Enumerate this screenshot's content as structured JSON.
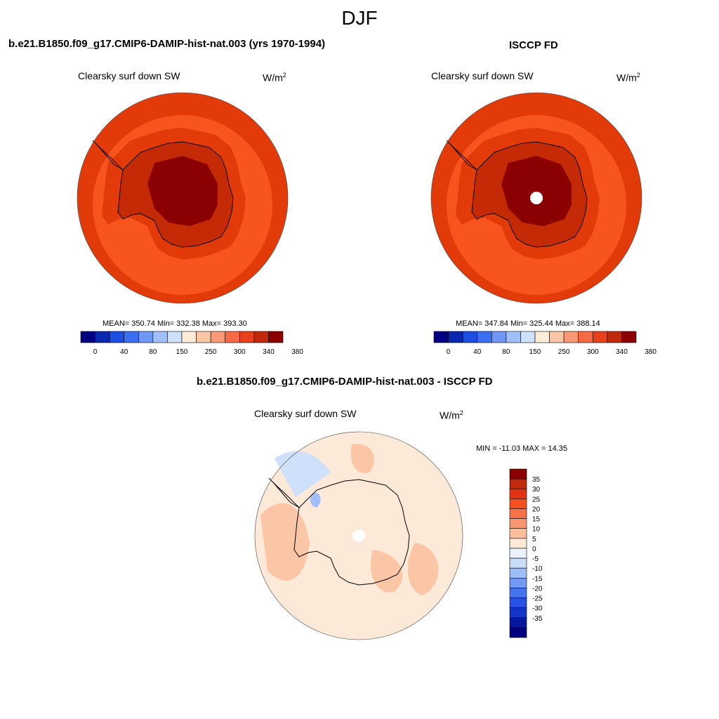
{
  "season": "DJF",
  "panels": [
    {
      "title": "b.e21.B1850.f09_g17.CMIP6-DAMIP-hist-nat.003 (yrs 1970-1994)",
      "left_label": "Clearsky surf down SW",
      "units_main": "W/m",
      "units_sup": "2",
      "stats": "MEAN= 350.74  Min= 332.38  Max= 393.30",
      "pole_hole": false
    },
    {
      "title": "ISCCP FD",
      "left_label": "Clearsky surf down SW",
      "units_main": "W/m",
      "units_sup": "2",
      "stats": "MEAN= 347.84  Min= 325.44  Max= 388.14",
      "pole_hole": true
    }
  ],
  "abs_colorbar": {
    "colors": [
      "#000080",
      "#0a27b0",
      "#1a4fe0",
      "#3a6ff0",
      "#6f97f5",
      "#9fbff8",
      "#cfe0fb",
      "#fdebd8",
      "#fbc6a6",
      "#f89a76",
      "#f56a45",
      "#e8401a",
      "#c02a0a",
      "#8b0000"
    ],
    "labels": [
      "0",
      "40",
      "80",
      "150",
      "250",
      "300",
      "340",
      "380"
    ]
  },
  "diff": {
    "title": "b.e21.B1850.f09_g17.CMIP6-DAMIP-hist-nat.003 - ISCCP FD",
    "left_label": "Clearsky surf down SW",
    "units_main": "W/m",
    "units_sup": "2",
    "stats": "MIN = -11.03 MAX =  14.35",
    "colorbar": {
      "colors": [
        "#8b0000",
        "#c02a0a",
        "#e03412",
        "#f5501e",
        "#f77248",
        "#f8966f",
        "#fbbd9a",
        "#fde9d8",
        "#eaf1fb",
        "#c9dcf8",
        "#9dbdf6",
        "#7199f2",
        "#4673ee",
        "#2852e4",
        "#1535c8",
        "#08189e",
        "#000080"
      ],
      "labels": [
        "35",
        "30",
        "25",
        "20",
        "15",
        "10",
        "5",
        "0",
        "-5",
        "-10",
        "-15",
        "-20",
        "-25",
        "-30",
        "-35"
      ]
    }
  },
  "map_colors": {
    "ocean_outer": "#e23a08",
    "ocean_mid": "#f7541e",
    "coast_band": "#e23a08",
    "ice_mid": "#c42a06",
    "ice_core": "#8b0000",
    "diff_base": "#fde9d8",
    "diff_pos": "#fbc6a6",
    "diff_neg": "#cfe0fb",
    "diff_neg2": "#9fbff8"
  }
}
